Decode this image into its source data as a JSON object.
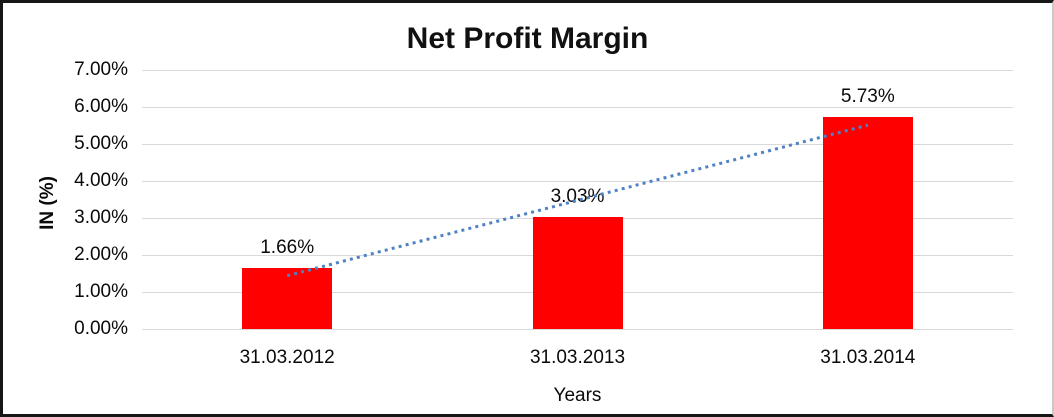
{
  "chart_data": {
    "type": "bar",
    "title": "Net Profit Margin",
    "xlabel": "Years",
    "ylabel": "IN (%)",
    "categories": [
      "31.03.2012",
      "31.03.2013",
      "31.03.2014"
    ],
    "values": [
      1.66,
      3.03,
      5.73
    ],
    "data_labels": [
      "1.66%",
      "3.03%",
      "5.73%"
    ],
    "ylim": [
      0,
      7
    ],
    "ytick_step": 1,
    "ytick_labels": [
      "0.00%",
      "1.00%",
      "2.00%",
      "3.00%",
      "4.00%",
      "5.00%",
      "6.00%",
      "7.00%"
    ],
    "grid": true,
    "legend": "none",
    "bar_color": "#ff0000",
    "gridline_color": "#d9d9d9",
    "trendline": {
      "type": "linear",
      "style": "dotted",
      "color": "#4e82c4",
      "start_value": 1.44,
      "end_value": 5.51
    }
  }
}
